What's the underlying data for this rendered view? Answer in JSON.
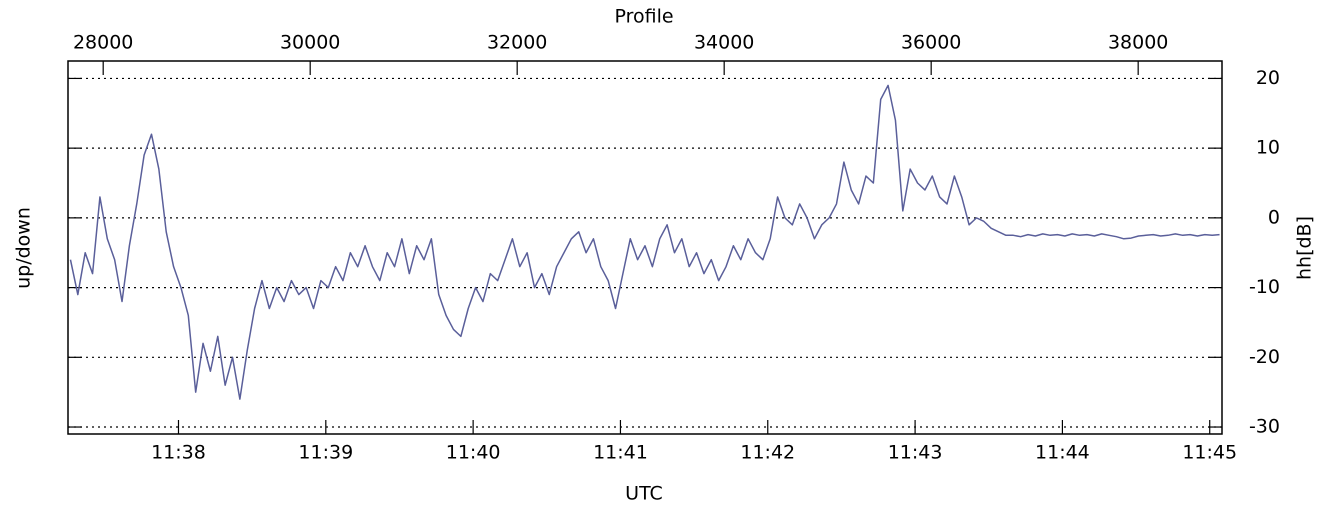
{
  "chart_data": {
    "type": "line",
    "x_label": "UTC",
    "x2_label": "Profile",
    "y_label": "up/down",
    "y2_label": "hh[dB]",
    "xlim": [
      41835,
      42305
    ],
    "xticks": [
      {
        "value": 41880,
        "label": "11:38"
      },
      {
        "value": 41940,
        "label": "11:39"
      },
      {
        "value": 42000,
        "label": "11:40"
      },
      {
        "value": 42060,
        "label": "11:41"
      },
      {
        "value": 42120,
        "label": "11:42"
      },
      {
        "value": 42180,
        "label": "11:43"
      },
      {
        "value": 42240,
        "label": "11:44"
      },
      {
        "value": 42300,
        "label": "11:45"
      }
    ],
    "x2lim": [
      27660,
      38810
    ],
    "x2ticks": [
      28000,
      30000,
      32000,
      34000,
      36000,
      38000
    ],
    "ylim": [
      -31,
      22.5
    ],
    "yticks": [
      20,
      10,
      0,
      -10,
      -20,
      -30
    ],
    "grid": true,
    "series": [
      {
        "color": "#5a5f9a",
        "x": [
          41836,
          41839,
          41842,
          41845,
          41848,
          41851,
          41854,
          41857,
          41860,
          41863,
          41866,
          41869,
          41872,
          41875,
          41878,
          41881,
          41884,
          41887,
          41890,
          41893,
          41896,
          41899,
          41902,
          41905,
          41908,
          41911,
          41914,
          41917,
          41920,
          41923,
          41926,
          41929,
          41932,
          41935,
          41938,
          41941,
          41944,
          41947,
          41950,
          41953,
          41956,
          41959,
          41962,
          41965,
          41968,
          41971,
          41974,
          41977,
          41980,
          41983,
          41986,
          41989,
          41992,
          41995,
          41998,
          42001,
          42004,
          42007,
          42010,
          42013,
          42016,
          42019,
          42022,
          42025,
          42028,
          42031,
          42034,
          42037,
          42040,
          42043,
          42046,
          42049,
          42052,
          42055,
          42058,
          42061,
          42064,
          42067,
          42070,
          42073,
          42076,
          42079,
          42082,
          42085,
          42088,
          42091,
          42094,
          42097,
          42100,
          42103,
          42106,
          42109,
          42112,
          42115,
          42118,
          42121,
          42124,
          42127,
          42130,
          42133,
          42136,
          42139,
          42142,
          42145,
          42148,
          42151,
          42154,
          42157,
          42160,
          42163,
          42166,
          42169,
          42172,
          42175,
          42178,
          42181,
          42184,
          42187,
          42190,
          42193,
          42196,
          42199,
          42202,
          42205,
          42208,
          42211,
          42214,
          42217,
          42220,
          42223,
          42226,
          42229,
          42232,
          42235,
          42238,
          42241,
          42244,
          42247,
          42250,
          42253,
          42256,
          42259,
          42262,
          42265,
          42268,
          42271,
          42274,
          42277,
          42280,
          42283,
          42286,
          42289,
          42292,
          42295,
          42298,
          42301,
          42304
        ],
        "values": [
          -6,
          -11,
          -5,
          -8,
          3,
          -3,
          -6,
          -12,
          -4,
          2,
          9,
          12,
          7,
          -2,
          -7,
          -10,
          -14,
          -25,
          -18,
          -22,
          -17,
          -24,
          -20,
          -26,
          -19,
          -13,
          -9,
          -13,
          -10,
          -12,
          -9,
          -11,
          -10,
          -13,
          -9,
          -10,
          -7,
          -9,
          -5,
          -7,
          -4,
          -7,
          -9,
          -5,
          -7,
          -3,
          -8,
          -4,
          -6,
          -3,
          -11,
          -14,
          -16,
          -17,
          -13,
          -10,
          -12,
          -8,
          -9,
          -6,
          -3,
          -7,
          -5,
          -10,
          -8,
          -11,
          -7,
          -5,
          -3,
          -2,
          -5,
          -3,
          -7,
          -9,
          -13,
          -8,
          -3,
          -6,
          -4,
          -7,
          -3,
          -1,
          -5,
          -3,
          -7,
          -5,
          -8,
          -6,
          -9,
          -7,
          -4,
          -6,
          -3,
          -5,
          -6,
          -3,
          3,
          0,
          -1,
          2,
          0,
          -3,
          -1,
          0,
          2,
          8,
          4,
          2,
          6,
          5,
          17,
          19,
          14,
          1,
          7,
          5,
          4,
          6,
          3,
          2,
          6,
          3,
          -1,
          0,
          -0.5,
          -1.5,
          -2,
          -2.5,
          -2.5,
          -2.7,
          -2.4,
          -2.6,
          -2.3,
          -2.5,
          -2.4,
          -2.6,
          -2.3,
          -2.5,
          -2.4,
          -2.6,
          -2.3,
          -2.5,
          -2.7,
          -3,
          -2.9,
          -2.6,
          -2.5,
          -2.4,
          -2.6,
          -2.5,
          -2.3,
          -2.5,
          -2.4,
          -2.6,
          -2.4,
          -2.5,
          -2.4
        ]
      }
    ]
  }
}
